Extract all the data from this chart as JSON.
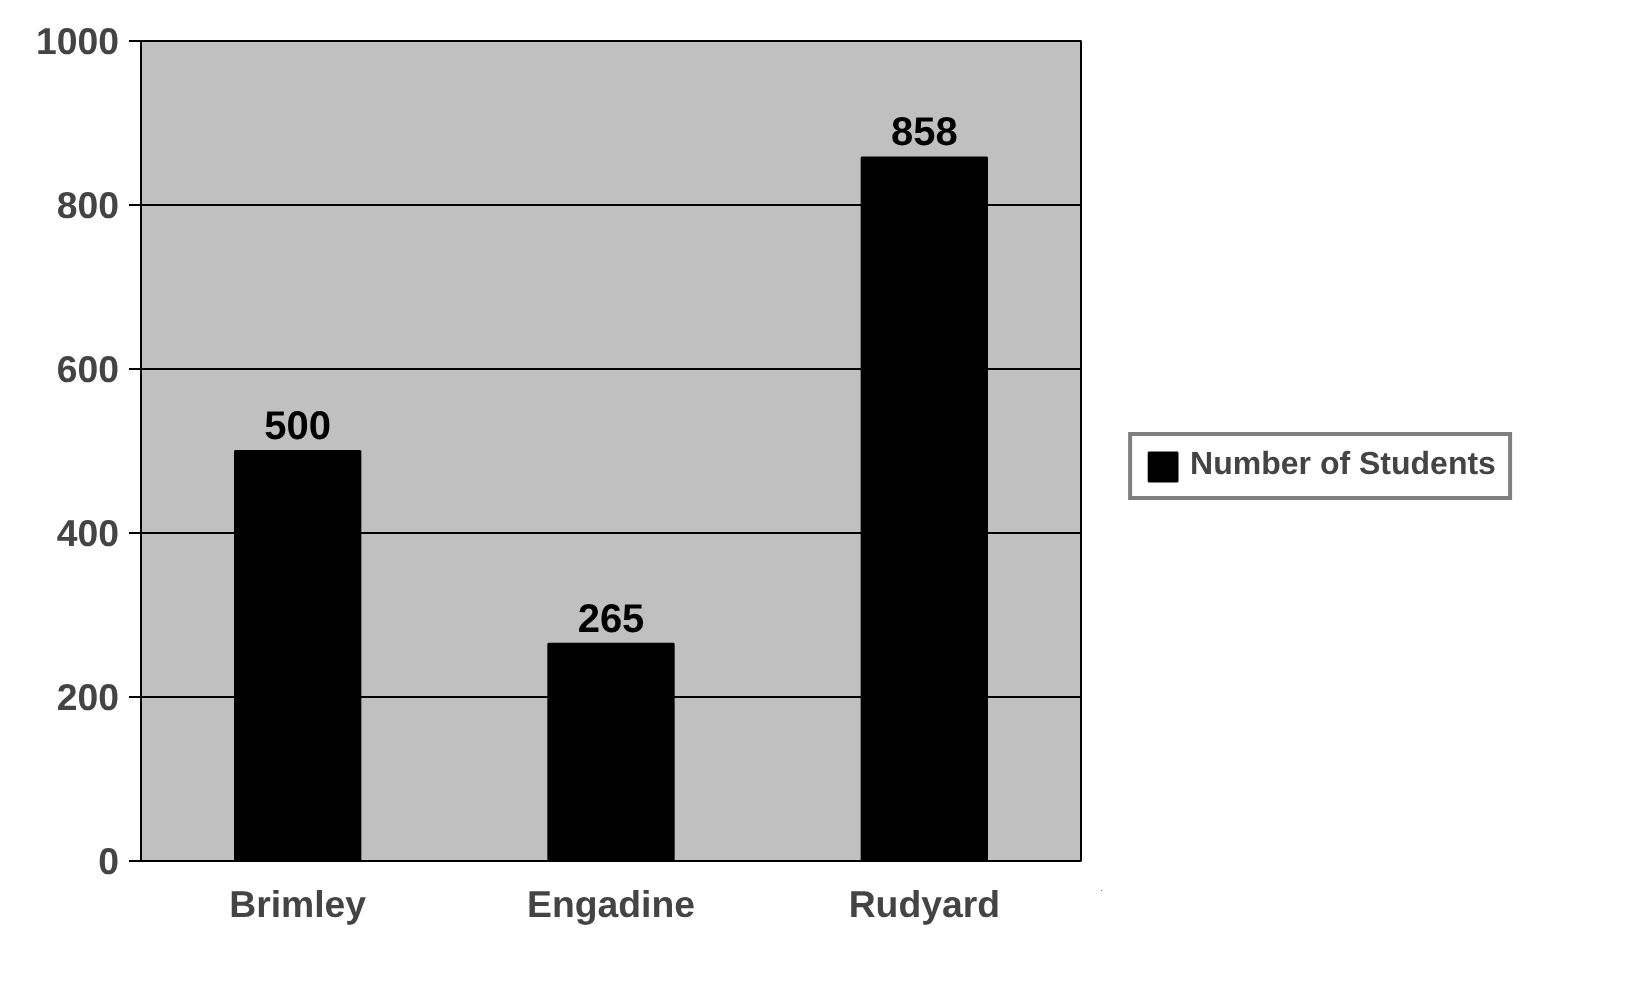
{
  "chart_data": {
    "type": "bar",
    "categories": [
      "Brimley",
      "Engadine",
      "Rudyard"
    ],
    "series": [
      {
        "name": "Number of Students",
        "color": "#000000",
        "values": [
          500,
          265,
          858
        ]
      }
    ],
    "ylim": [
      0,
      1000
    ],
    "yticks": [
      0,
      200,
      400,
      600,
      800,
      1000
    ],
    "grid": "y",
    "legend": "right",
    "data_labels": true
  }
}
